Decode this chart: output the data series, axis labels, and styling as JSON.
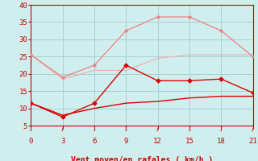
{
  "x": [
    0,
    3,
    6,
    9,
    12,
    15,
    18,
    21
  ],
  "line1": [
    25.5,
    19.0,
    22.5,
    32.5,
    36.5,
    36.5,
    32.5,
    25.0
  ],
  "line2": [
    25.5,
    18.5,
    21.0,
    21.0,
    24.5,
    25.5,
    25.5,
    25.5
  ],
  "line3": [
    11.5,
    7.5,
    11.5,
    22.5,
    18.0,
    18.0,
    18.5,
    14.5
  ],
  "line4": [
    11.5,
    8.0,
    10.0,
    11.5,
    12.0,
    13.0,
    13.5,
    13.5
  ],
  "line1_color": "#f08080",
  "line2_color": "#f0b0b0",
  "line3_color": "#dd0000",
  "line4_color": "#dd0000",
  "marker3_color": "#dd0000",
  "bg_color": "#d0eeee",
  "grid_color": "#a0cccc",
  "axis_color": "#cc0000",
  "xlabel": "Vent moyen/en rafales ( km/h )",
  "xlabel_color": "#cc0000",
  "tick_color": "#cc0000",
  "ylim": [
    5,
    40
  ],
  "xlim": [
    0,
    21
  ],
  "yticks": [
    5,
    10,
    15,
    20,
    25,
    30,
    35,
    40
  ],
  "xticks": [
    0,
    3,
    6,
    9,
    12,
    15,
    18,
    21
  ]
}
